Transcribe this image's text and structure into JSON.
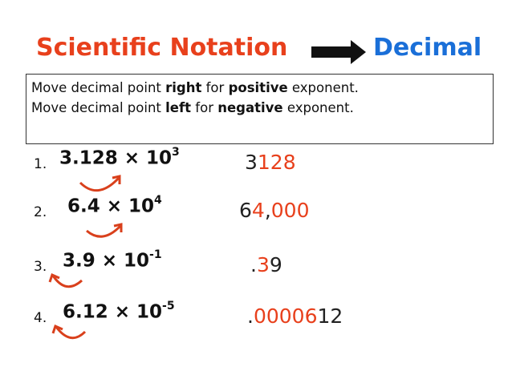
{
  "title": {
    "left": "Scientific Notation",
    "right": "Decimal",
    "left_color": "#e8401c",
    "right_color": "#1a6fd8"
  },
  "rule_box": {
    "lines": [
      [
        {
          "text": "Move decimal point ",
          "bold": false
        },
        {
          "text": "right",
          "bold": true
        },
        {
          "text": " for ",
          "bold": false
        },
        {
          "text": "positive",
          "bold": true
        },
        {
          "text": " exponent.",
          "bold": false
        }
      ],
      [
        {
          "text": "Move decimal point ",
          "bold": false
        },
        {
          "text": "left",
          "bold": true
        },
        {
          "text": " for ",
          "bold": false
        },
        {
          "text": "negative",
          "bold": true
        },
        {
          "text": " exponent.",
          "bold": false
        }
      ]
    ]
  },
  "problems": [
    {
      "number": "1.",
      "base": "3.128 × 10",
      "exponent": "3",
      "answer": [
        {
          "text": "3",
          "color": "#222222"
        },
        {
          "text": "128",
          "color": "#e8401c"
        }
      ]
    },
    {
      "number": "2.",
      "base": "6.4 × 10",
      "exponent": "4",
      "answer": [
        {
          "text": "6",
          "color": "#222222"
        },
        {
          "text": "4",
          "color": "#e8401c"
        },
        {
          "text": ",",
          "color": "#222222"
        },
        {
          "text": "000",
          "color": "#e8401c"
        }
      ]
    },
    {
      "number": "3.",
      "base": "3.9 × 10",
      "exponent": "-1",
      "answer": [
        {
          "text": ".",
          "color": "#222222"
        },
        {
          "text": "3",
          "color": "#e8401c"
        },
        {
          "text": "9",
          "color": "#222222"
        }
      ]
    },
    {
      "number": "4.",
      "base": "6.12 × 10",
      "exponent": "-5",
      "answer": [
        {
          "text": ".",
          "color": "#222222"
        },
        {
          "text": "00006",
          "color": "#e8401c"
        },
        {
          "text": "12",
          "color": "#222222"
        }
      ]
    }
  ]
}
